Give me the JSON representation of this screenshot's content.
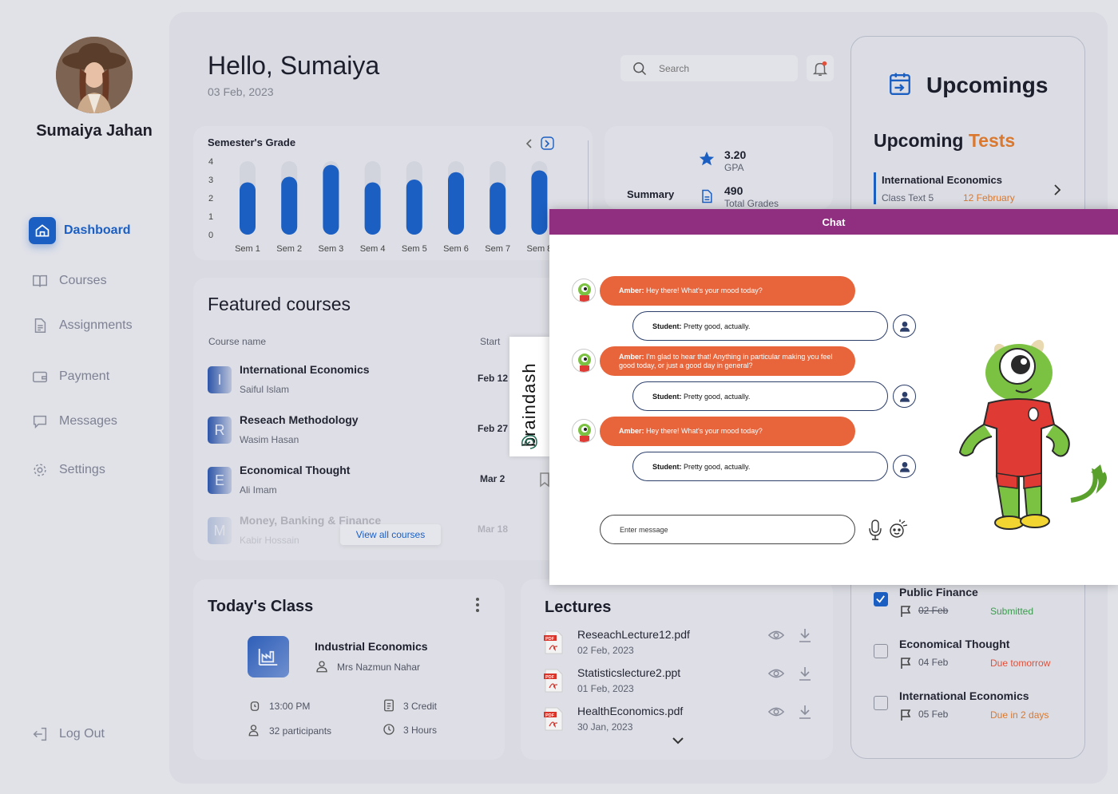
{
  "user": {
    "name": "Sumaiya Jahan"
  },
  "nav": [
    {
      "label": "Dashboard",
      "icon": "home-icon",
      "active": true
    },
    {
      "label": "Courses",
      "icon": "book-icon"
    },
    {
      "label": "Assignments",
      "icon": "document-icon"
    },
    {
      "label": "Payment",
      "icon": "wallet-icon"
    },
    {
      "label": "Messages",
      "icon": "message-icon"
    },
    {
      "label": "Settings",
      "icon": "gear-icon"
    }
  ],
  "logout_label": "Log Out",
  "header": {
    "greeting": "Hello, Sumaiya",
    "date": "03 Feb, 2023",
    "search_placeholder": "Search"
  },
  "grades": {
    "title": "Semester's Grade"
  },
  "chart_data": {
    "type": "bar",
    "title": "Semester's Grade",
    "categories": [
      "Sem 1",
      "Sem 2",
      "Sem 3",
      "Sem 4",
      "Sem 5",
      "Sem 6",
      "Sem 7",
      "Sem 8"
    ],
    "values": [
      2.85,
      3.15,
      3.8,
      2.85,
      3.0,
      3.4,
      2.85,
      3.5
    ],
    "yticks": [
      0,
      1,
      2,
      3,
      4
    ],
    "ylim": [
      0,
      4
    ]
  },
  "summary": {
    "label": "Summary",
    "gpa_value": "3.20",
    "gpa_label": "GPA",
    "grades_value": "490",
    "grades_label": "Total Grades"
  },
  "featured": {
    "title": "Featured courses",
    "col_course": "Course name",
    "col_start": "Start",
    "view_all": "View all courses",
    "courses": [
      {
        "letter": "I",
        "name": "International Economics",
        "teacher": "Saiful Islam",
        "start": "Feb 12"
      },
      {
        "letter": "R",
        "name": "Reseach Methodology",
        "teacher": "Wasim Hasan",
        "start": "Feb 27"
      },
      {
        "letter": "E",
        "name": "Economical Thought",
        "teacher": "Ali Imam",
        "start": "Mar 2"
      },
      {
        "letter": "M",
        "name": "Money, Banking & Finance",
        "teacher": "Kabir Hossain",
        "start": "Mar 18"
      }
    ]
  },
  "today": {
    "title": "Today's Class",
    "course": "Industrial Economics",
    "teacher": "Mrs Nazmun Nahar",
    "time": "13:00 PM",
    "credit": "3 Credit",
    "participants": "32 participants",
    "hours": "3 Hours"
  },
  "lectures": {
    "title": "Lectures",
    "items": [
      {
        "name": "ReseachLecture12.pdf",
        "date": "02 Feb, 2023"
      },
      {
        "name": "Statisticslecture2.ppt",
        "date": "01 Feb, 2023"
      },
      {
        "name": "HealthEconomics.pdf",
        "date": "30 Jan, 2023"
      }
    ]
  },
  "upcomings": {
    "title": "Upcomings",
    "tests_prefix": "Upcoming",
    "tests_suffix": "Tests",
    "test": {
      "name": "International Economics",
      "sub": "Class Text 5",
      "date": "12 February"
    },
    "tasks": [
      {
        "name": "Public Finance",
        "date": "02 Feb",
        "status": "Submitted",
        "status_color": "#3c9a4e",
        "checked": true
      },
      {
        "name": "Economical Thought",
        "date": "04 Feb",
        "status": "Due tomorrow",
        "status_color": "#e0503a",
        "checked": false
      },
      {
        "name": "International Economics",
        "date": "05 Feb",
        "status": "Due in 2 days",
        "status_color": "#d9782e",
        "checked": false
      }
    ]
  },
  "brand": {
    "name": "braindash"
  },
  "chat": {
    "title": "Chat",
    "input_placeholder": "Enter message",
    "messages": [
      {
        "from": "bot",
        "speaker": "Amber:",
        "text": " Hey there! What's your mood today?"
      },
      {
        "from": "user",
        "speaker": "Student:",
        "text": " Pretty good, actually."
      },
      {
        "from": "bot",
        "speaker": "Amber:",
        "text": " I'm glad to hear that! Anything in particular making you feel good today, or just a good day in general?"
      },
      {
        "from": "user",
        "speaker": "Student:",
        "text": " Pretty good, actually."
      },
      {
        "from": "bot",
        "speaker": "Amber:",
        "text": " Hey there! What's your mood today?"
      },
      {
        "from": "user",
        "speaker": "Student:",
        "text": " Pretty good, actually."
      }
    ]
  },
  "colors": {
    "accent": "#1b5fc2",
    "chat_header": "#902e7f",
    "bot_bubble": "#e8643a",
    "test_accent": "#d9782e"
  }
}
